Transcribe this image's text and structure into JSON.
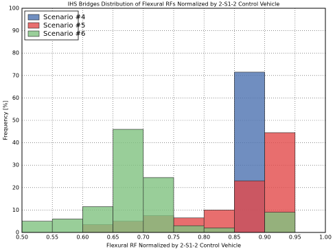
{
  "chart_data": {
    "type": "histogram",
    "title": "IHS Bridges Distribution of Flexural RFs Normalized by 2-S1-2 Control Vehicle",
    "x_label": "Flexural RF Normalized by 2-S1-2 Control Vehicle",
    "y_label": "Frequency [%]",
    "bins": [
      0.5,
      0.55,
      0.6,
      0.65,
      0.7,
      0.75,
      0.8,
      0.85,
      0.9,
      0.95,
      1.0
    ],
    "series": [
      {
        "name": "Scenario #4",
        "color": "#4c72b0",
        "values": [
          0,
          0,
          0,
          0,
          0,
          0,
          0,
          71.5,
          0,
          0
        ]
      },
      {
        "name": "Scenario #5",
        "color": "#e24a4a",
        "values": [
          0,
          0,
          3.5,
          5,
          7.5,
          6.5,
          10,
          23,
          44.5,
          0
        ]
      },
      {
        "name": "Scenario #6",
        "color": "#7fc27f",
        "values": [
          5,
          6,
          11.5,
          46,
          24.5,
          3,
          2,
          0,
          9,
          0
        ]
      }
    ],
    "xlim": [
      0.5,
      1.0
    ],
    "xticks": [
      {
        "value": 0.5,
        "label": "0.50"
      },
      {
        "value": 0.55,
        "label": "0.55"
      },
      {
        "value": 0.6,
        "label": "0.60"
      },
      {
        "value": 0.65,
        "label": "0.65"
      },
      {
        "value": 0.7,
        "label": "0.70"
      },
      {
        "value": 0.75,
        "label": "0.75"
      },
      {
        "value": 0.8,
        "label": "0.80"
      },
      {
        "value": 0.85,
        "label": "0.85"
      },
      {
        "value": 0.9,
        "label": "0.90"
      },
      {
        "value": 0.95,
        "label": "0.95"
      },
      {
        "value": 1.0,
        "label": "1.00"
      }
    ],
    "ylim": [
      0,
      100
    ],
    "yticks": [
      0,
      10,
      20,
      30,
      40,
      50,
      60,
      70,
      80,
      90,
      100
    ],
    "grid": true,
    "legend": "upper-left"
  }
}
